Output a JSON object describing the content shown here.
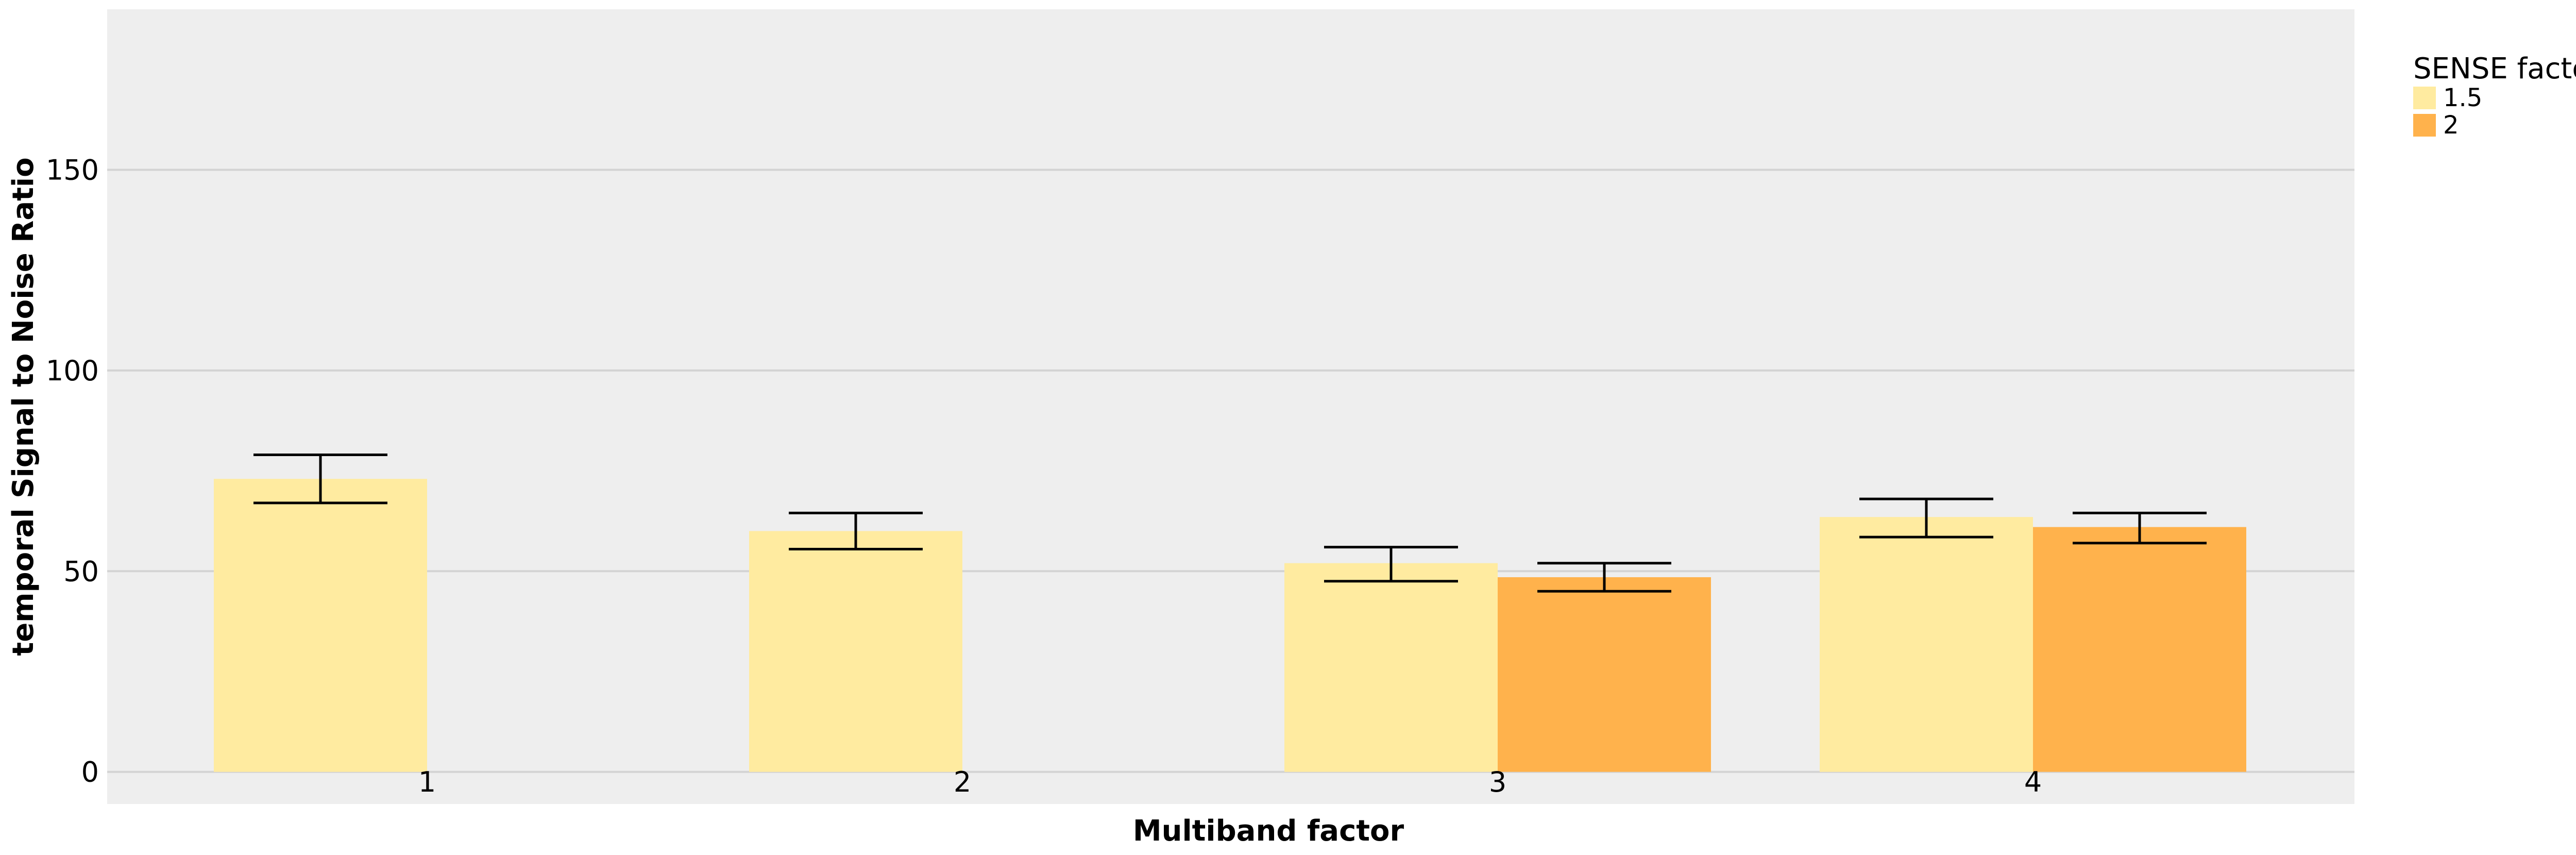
{
  "chart_data": {
    "type": "bar",
    "xlabel": "Multiband factor",
    "ylabel": "temporal Signal to Noise Ratio",
    "categories": [
      "1",
      "2",
      "3",
      "4"
    ],
    "ylim": [
      -8,
      190
    ],
    "yticks": [
      0,
      50,
      100,
      150
    ],
    "grid": true,
    "legend": {
      "title": "SENSE factor",
      "placement": "top-right"
    },
    "series": [
      {
        "name": "1.5",
        "color": "#FFEBA0",
        "values": [
          73,
          60,
          52,
          63.5
        ],
        "error_low": [
          67,
          55.5,
          47.5,
          58.5
        ],
        "error_high": [
          79,
          64.5,
          56,
          68
        ]
      },
      {
        "name": "2",
        "color": "#FFB24C",
        "values": [
          null,
          null,
          48.5,
          61
        ],
        "error_low": [
          null,
          null,
          45,
          57
        ],
        "error_high": [
          null,
          null,
          52,
          64.5
        ]
      }
    ],
    "colors": {
      "panel_background": "#EEEEEE",
      "gridline": "#D3D3D3",
      "error_bar": "#000000"
    }
  }
}
